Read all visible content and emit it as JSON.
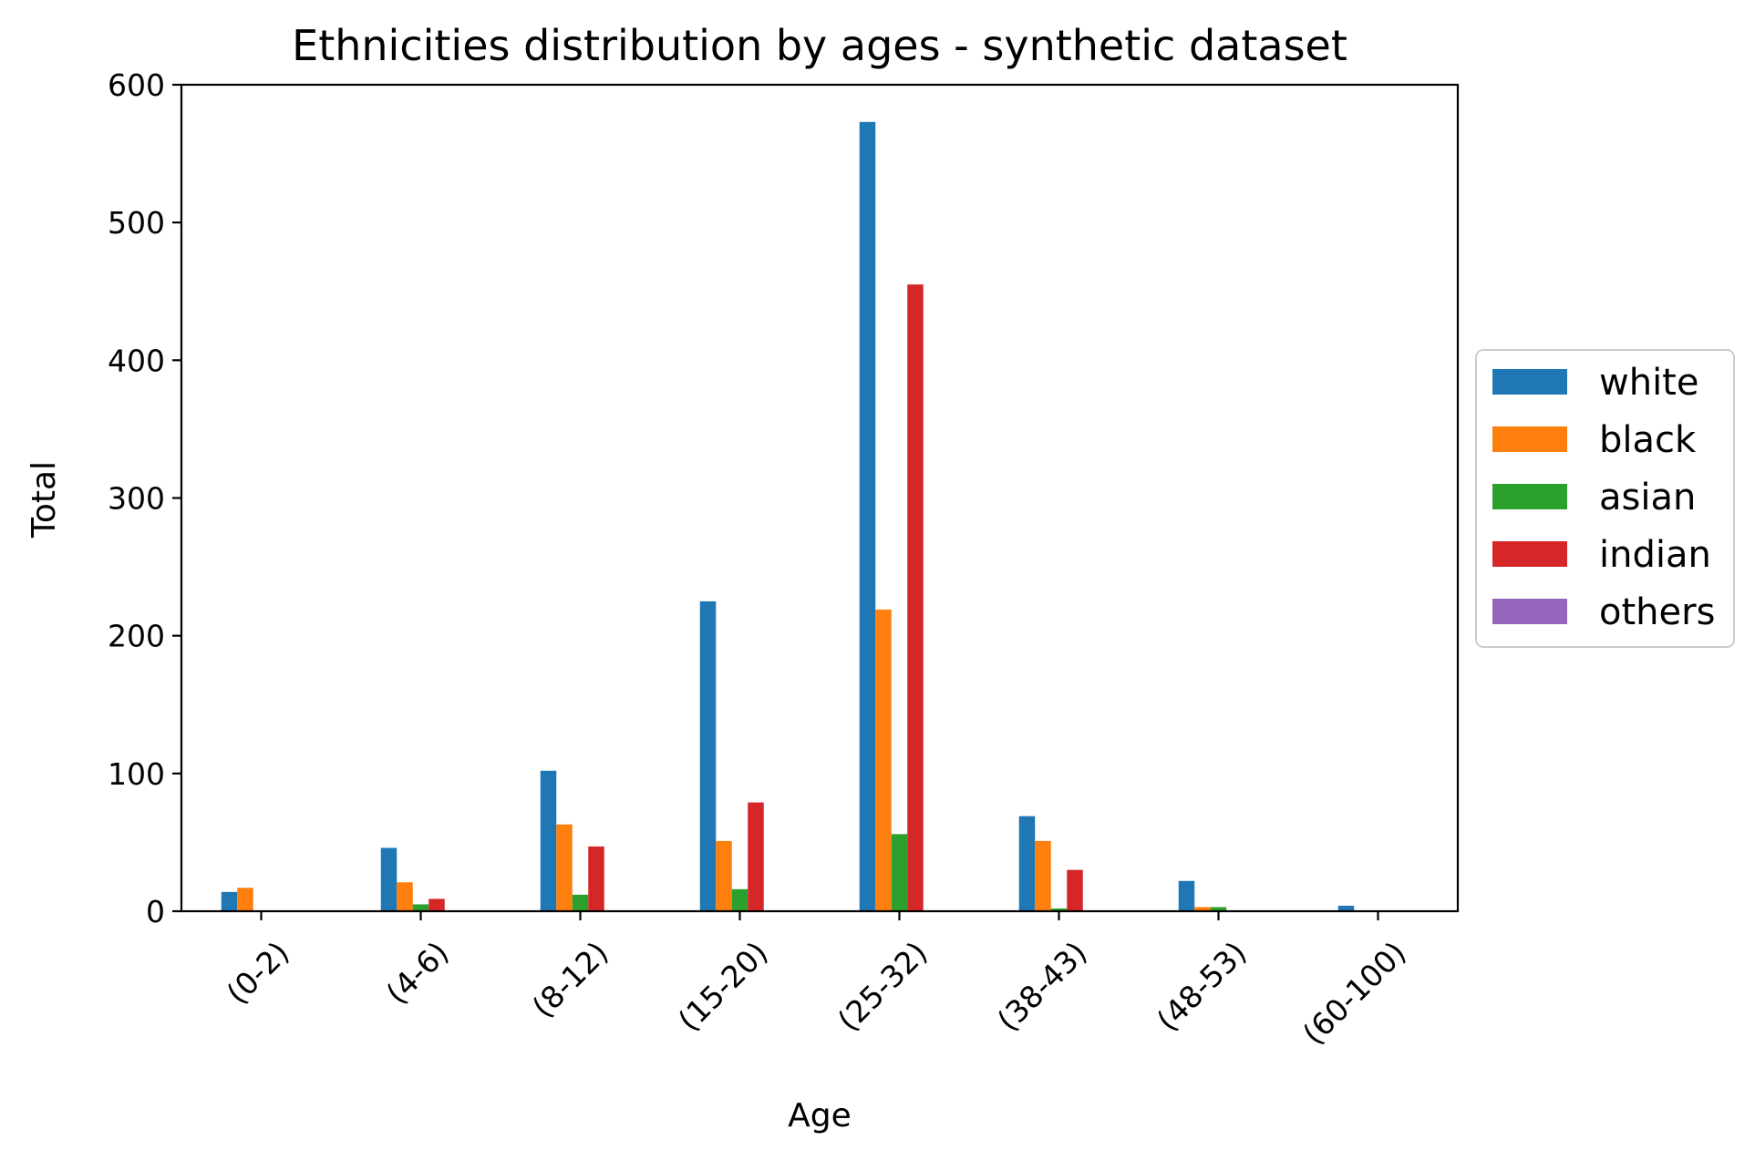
{
  "chart_data": {
    "type": "bar",
    "title": "Ethnicities distribution by ages - synthetic dataset",
    "xlabel": "Age",
    "ylabel": "Total",
    "ylim": [
      0,
      600
    ],
    "yticks": [
      0,
      100,
      200,
      300,
      400,
      500,
      600
    ],
    "grid": false,
    "legend_position": "center-right, outside plot",
    "categories": [
      "(0-2)",
      "(4-6)",
      "(8-12)",
      "(15-20)",
      "(25-32)",
      "(38-43)",
      "(48-53)",
      "(60-100)"
    ],
    "series": [
      {
        "name": "white",
        "color": "#1f77b4",
        "values": [
          14,
          46,
          102,
          225,
          573,
          69,
          22,
          4
        ]
      },
      {
        "name": "black",
        "color": "#ff7f0e",
        "values": [
          17,
          21,
          63,
          51,
          219,
          51,
          3,
          0
        ]
      },
      {
        "name": "asian",
        "color": "#2ca02c",
        "values": [
          0,
          5,
          12,
          16,
          56,
          2,
          3,
          0
        ]
      },
      {
        "name": "indian",
        "color": "#d62728",
        "values": [
          0,
          9,
          47,
          79,
          455,
          30,
          0,
          0
        ]
      },
      {
        "name": "others",
        "color": "#9467bd",
        "values": [
          0,
          0,
          0,
          0,
          0,
          0,
          0,
          0
        ]
      }
    ]
  }
}
